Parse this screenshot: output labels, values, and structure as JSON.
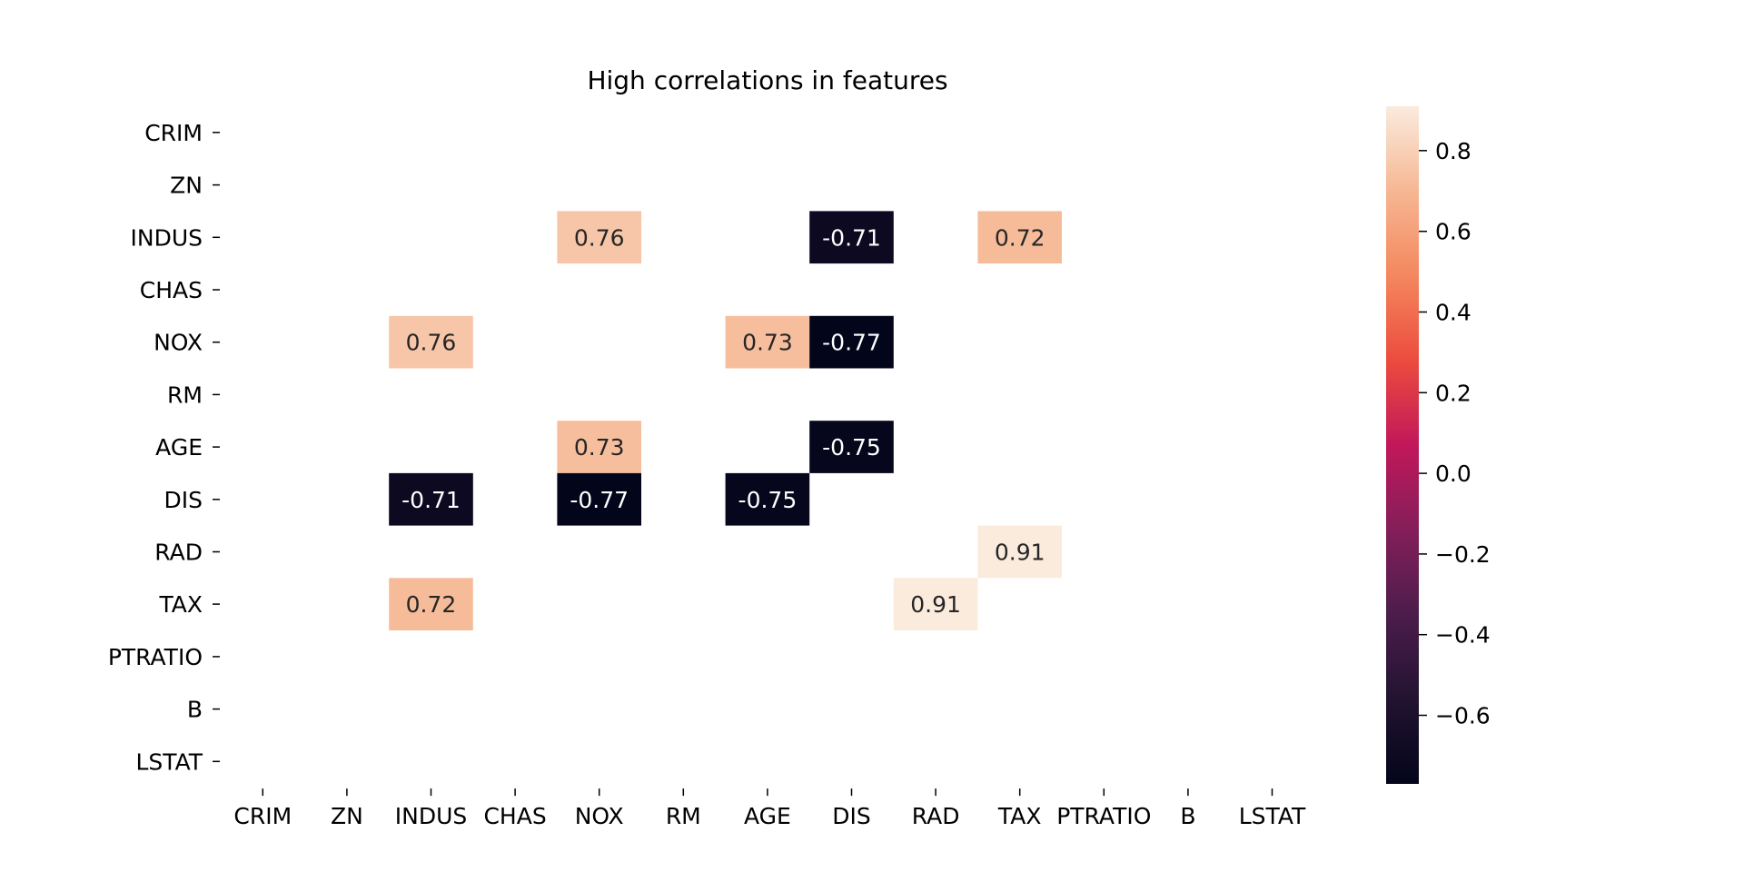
{
  "chart_data": {
    "type": "heatmap",
    "title": "High correlations in features",
    "xlabel": "",
    "ylabel": "",
    "x_categories": [
      "CRIM",
      "ZN",
      "INDUS",
      "CHAS",
      "NOX",
      "RM",
      "AGE",
      "DIS",
      "RAD",
      "TAX",
      "PTRATIO",
      "B",
      "LSTAT"
    ],
    "y_categories": [
      "CRIM",
      "ZN",
      "INDUS",
      "CHAS",
      "NOX",
      "RM",
      "AGE",
      "DIS",
      "RAD",
      "TAX",
      "PTRATIO",
      "B",
      "LSTAT"
    ],
    "cells": [
      {
        "x": "NOX",
        "y": "INDUS",
        "value": 0.76,
        "label": "0.76"
      },
      {
        "x": "DIS",
        "y": "INDUS",
        "value": -0.71,
        "label": "-0.71"
      },
      {
        "x": "TAX",
        "y": "INDUS",
        "value": 0.72,
        "label": "0.72"
      },
      {
        "x": "INDUS",
        "y": "NOX",
        "value": 0.76,
        "label": "0.76"
      },
      {
        "x": "AGE",
        "y": "NOX",
        "value": 0.73,
        "label": "0.73"
      },
      {
        "x": "DIS",
        "y": "NOX",
        "value": -0.77,
        "label": "-0.77"
      },
      {
        "x": "NOX",
        "y": "AGE",
        "value": 0.73,
        "label": "0.73"
      },
      {
        "x": "DIS",
        "y": "AGE",
        "value": -0.75,
        "label": "-0.75"
      },
      {
        "x": "INDUS",
        "y": "DIS",
        "value": -0.71,
        "label": "-0.71"
      },
      {
        "x": "NOX",
        "y": "DIS",
        "value": -0.77,
        "label": "-0.77"
      },
      {
        "x": "AGE",
        "y": "DIS",
        "value": -0.75,
        "label": "-0.75"
      },
      {
        "x": "TAX",
        "y": "RAD",
        "value": 0.91,
        "label": "0.91"
      },
      {
        "x": "INDUS",
        "y": "TAX",
        "value": 0.72,
        "label": "0.72"
      },
      {
        "x": "RAD",
        "y": "TAX",
        "value": 0.91,
        "label": "0.91"
      }
    ],
    "colorbar": {
      "range": [
        -0.77,
        0.91
      ],
      "ticks": [
        0.8,
        0.6,
        0.4,
        0.2,
        0.0,
        -0.2,
        -0.4,
        -0.6
      ],
      "tick_labels": [
        "0.8",
        "0.6",
        "0.4",
        "0.2",
        "0.0",
        "−0.2",
        "−0.4",
        "−0.6"
      ]
    },
    "colormap": "rocket",
    "grid": false,
    "legend": "colorbar-right"
  }
}
